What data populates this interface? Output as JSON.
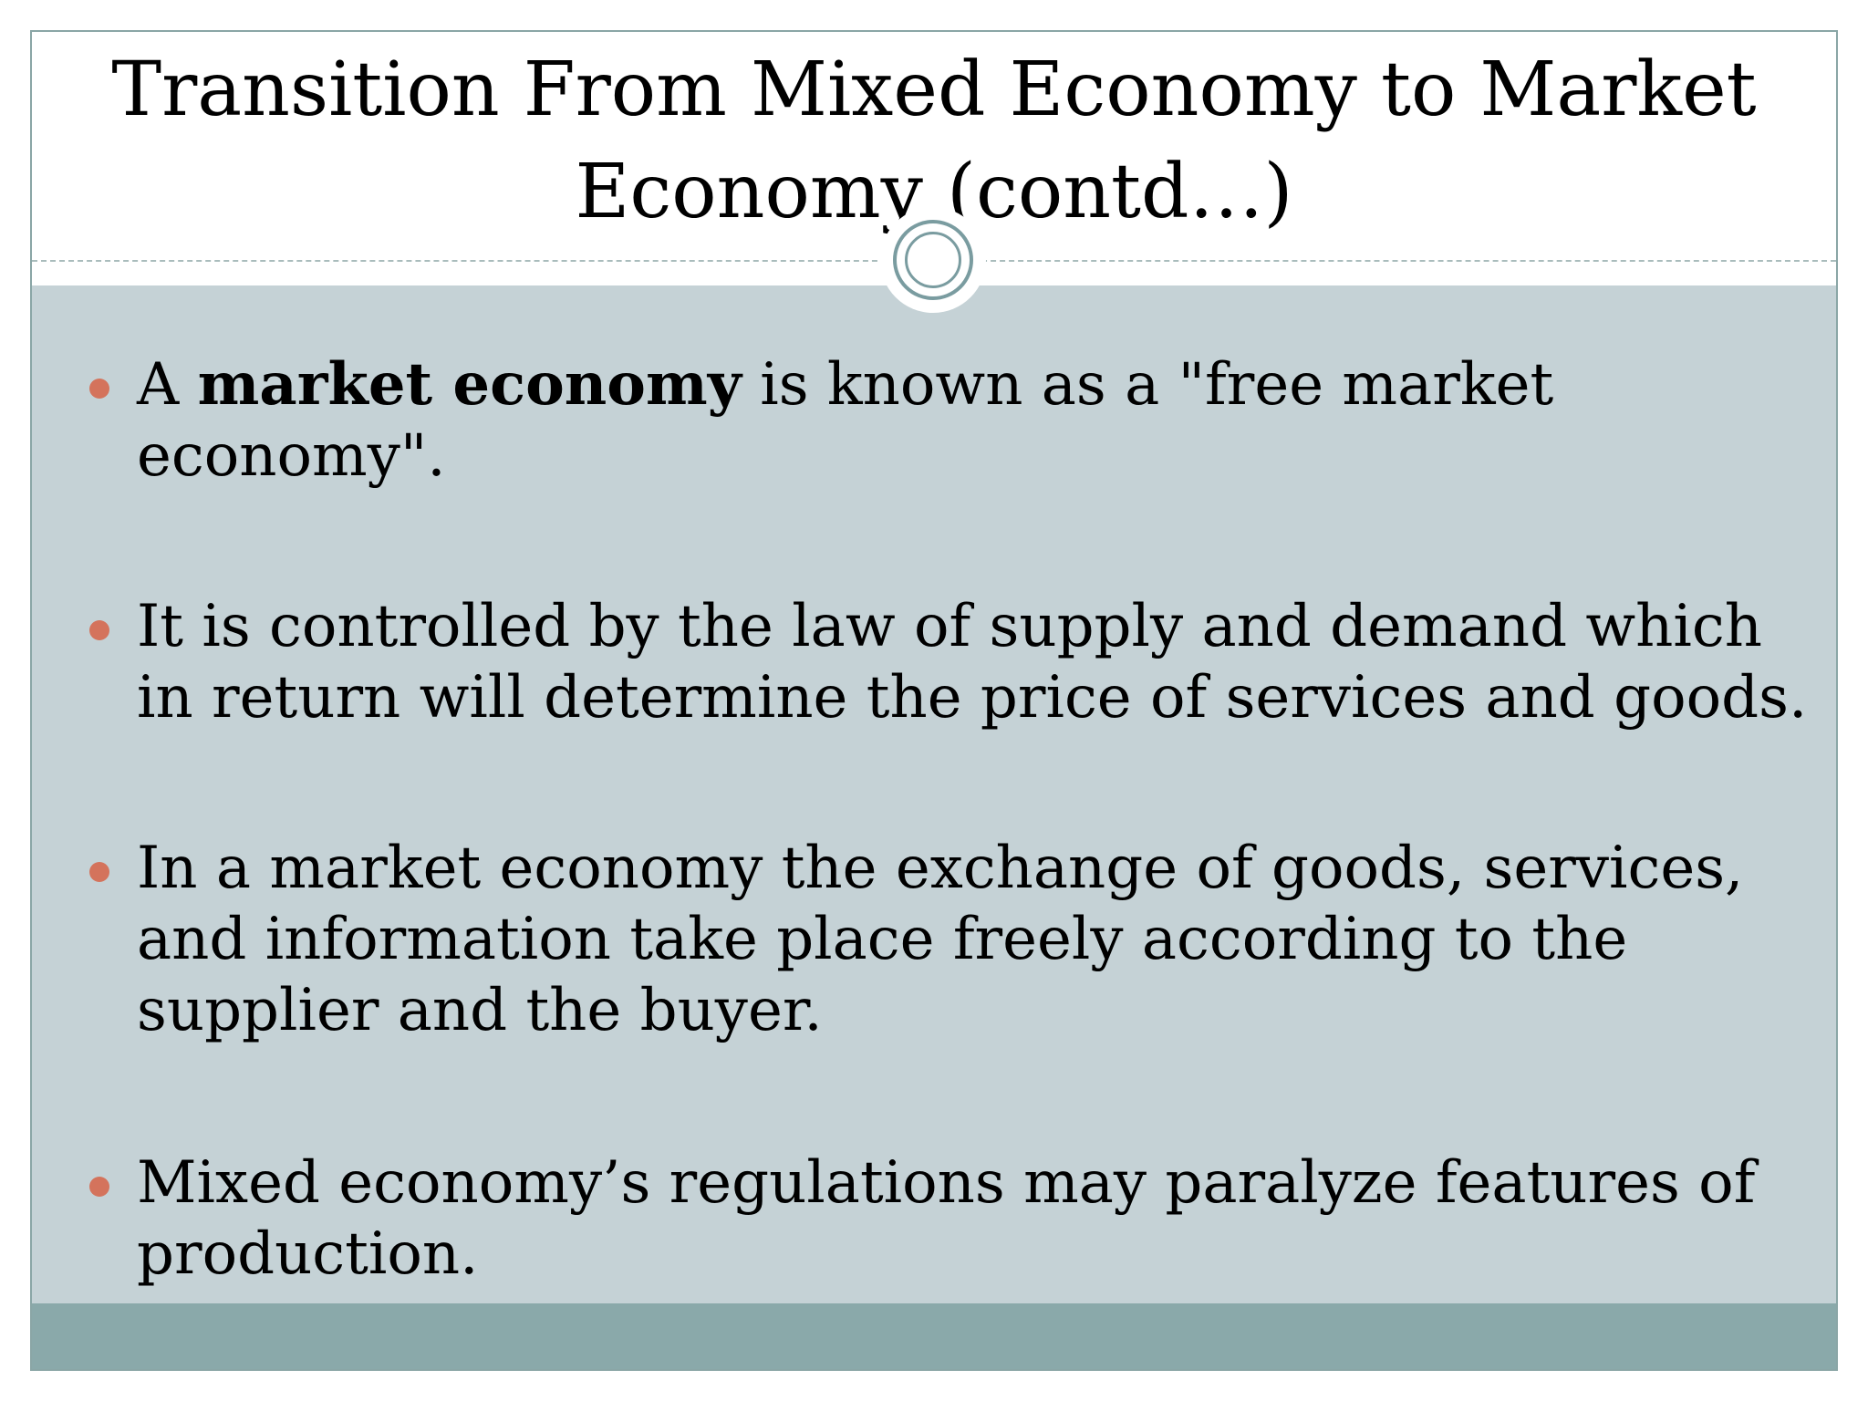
{
  "slide": {
    "title": "Transition From Mixed Economy to Market Economy (contd…)",
    "colors": {
      "content_background": "#c5d2d6",
      "footer_bar": "#8aa9aa",
      "bullet_marker": "#d4735c",
      "ornament_ring": "#7a9ca0"
    },
    "ornament_icon": "double-ring-circle",
    "bullets": [
      {
        "prefix": "A ",
        "bold": "market economy",
        "suffix": " is known as a \"free market economy\"."
      },
      {
        "text": "It is controlled by the law of supply and demand which in return will determine the price of services and goods."
      },
      {
        "text": "In a market economy the exchange of goods, services, and information take place freely according to the supplier and the buyer."
      },
      {
        "text": "Mixed economy’s regulations may paralyze features of production."
      }
    ]
  }
}
